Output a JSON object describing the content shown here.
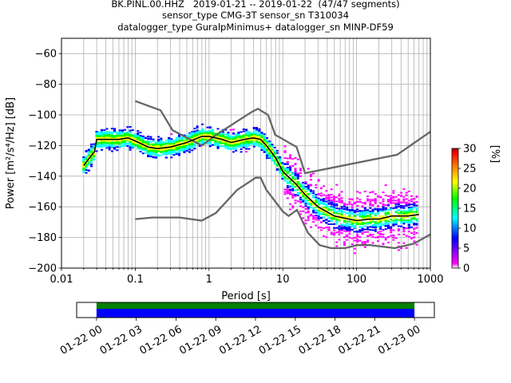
{
  "title_lines": [
    "BK.PINL.00.HHZ   2019-01-21 -- 2019-01-22  (47/47 segments)",
    "sensor_type CMG-3T sensor_sn T310034",
    "datalogger_type GuralpMinimus+ datalogger_sn MINP-DF59"
  ],
  "chart_data": [
    {
      "type": "heatmap",
      "title": "BK.PINL.00.HHZ   2019-01-21 -- 2019-01-22  (47/47 segments)",
      "xlabel": "Period [s]",
      "ylabel": "Power [m²/s⁴/Hz] [dB]",
      "xscale": "log",
      "xlim": [
        0.01,
        1000
      ],
      "ylim": [
        -200,
        -50
      ],
      "x_tick_labels": [
        "0.01",
        "0.1",
        "1",
        "10",
        "100",
        "1000"
      ],
      "y_ticks": [
        -200,
        -180,
        -160,
        -140,
        -120,
        -100,
        -80,
        -60
      ],
      "grid": true,
      "colorbar": {
        "label": "[%]",
        "range": [
          0,
          30
        ],
        "ticks": [
          0,
          5,
          10,
          15,
          20,
          25,
          30
        ],
        "colors": [
          "#ffffff",
          "#ff00ff",
          "#0000ff",
          "#00ffff",
          "#00ff00",
          "#ffff00",
          "#ff8000",
          "#ff0000",
          "#a00000"
        ]
      },
      "mode_curve": {
        "color": "#000000",
        "x": [
          0.02,
          0.025,
          0.028,
          0.03,
          0.04,
          0.06,
          0.08,
          0.1,
          0.15,
          0.2,
          0.3,
          0.5,
          0.8,
          1,
          1.5,
          2,
          3,
          4,
          5,
          6,
          8,
          10,
          15,
          20,
          30,
          50,
          80,
          100,
          150,
          200,
          300,
          500,
          700
        ],
        "y": [
          -133,
          -127,
          -124,
          -116,
          -116,
          -116,
          -115,
          -117,
          -121,
          -122,
          -121,
          -118,
          -114,
          -114,
          -116,
          -118,
          -116,
          -115,
          -116,
          -120,
          -128,
          -137,
          -145,
          -152,
          -160,
          -166,
          -168,
          -169,
          -168,
          -168,
          -166,
          -166,
          -165
        ]
      },
      "noise_models": {
        "color": "#666666",
        "high": {
          "x": [
            0.1,
            0.22,
            0.32,
            0.8,
            1.25,
            3.8,
            4.6,
            6.3,
            7.9,
            15.4,
            20,
            354.8,
            1000
          ],
          "y": [
            -91,
            -97,
            -110,
            -120,
            -113,
            -98,
            -96,
            -100,
            -113,
            -121,
            -138,
            -126,
            -111
          ]
        },
        "low": {
          "x": [
            0.1,
            0.17,
            0.4,
            0.8,
            1.24,
            2.4,
            4.3,
            5.0,
            6.0,
            10.0,
            12.0,
            15.6,
            21.9,
            31.6,
            45.0,
            70.0,
            101.0,
            154.0,
            328.0,
            600.0,
            1000.0
          ],
          "y": [
            -168,
            -167,
            -167,
            -169,
            -164,
            -149,
            -141,
            -141,
            -149,
            -163,
            -166,
            -162,
            -177,
            -185,
            -187,
            -187,
            -185,
            -185,
            -187,
            -184,
            -178
          ]
        }
      }
    },
    {
      "type": "bar",
      "title": "",
      "x_tick_labels": [
        "01-22 00",
        "01-22 03",
        "01-22 06",
        "01-22 09",
        "01-22 12",
        "01-22 15",
        "01-22 18",
        "01-22 21",
        "01-23 00"
      ],
      "x_range_hours": [
        -1.5,
        25.5
      ],
      "coverage_hours": [
        0,
        24
      ],
      "series": [
        {
          "name": "",
          "color": "#008000"
        },
        {
          "name": "",
          "color": "#0000ff"
        }
      ]
    }
  ]
}
